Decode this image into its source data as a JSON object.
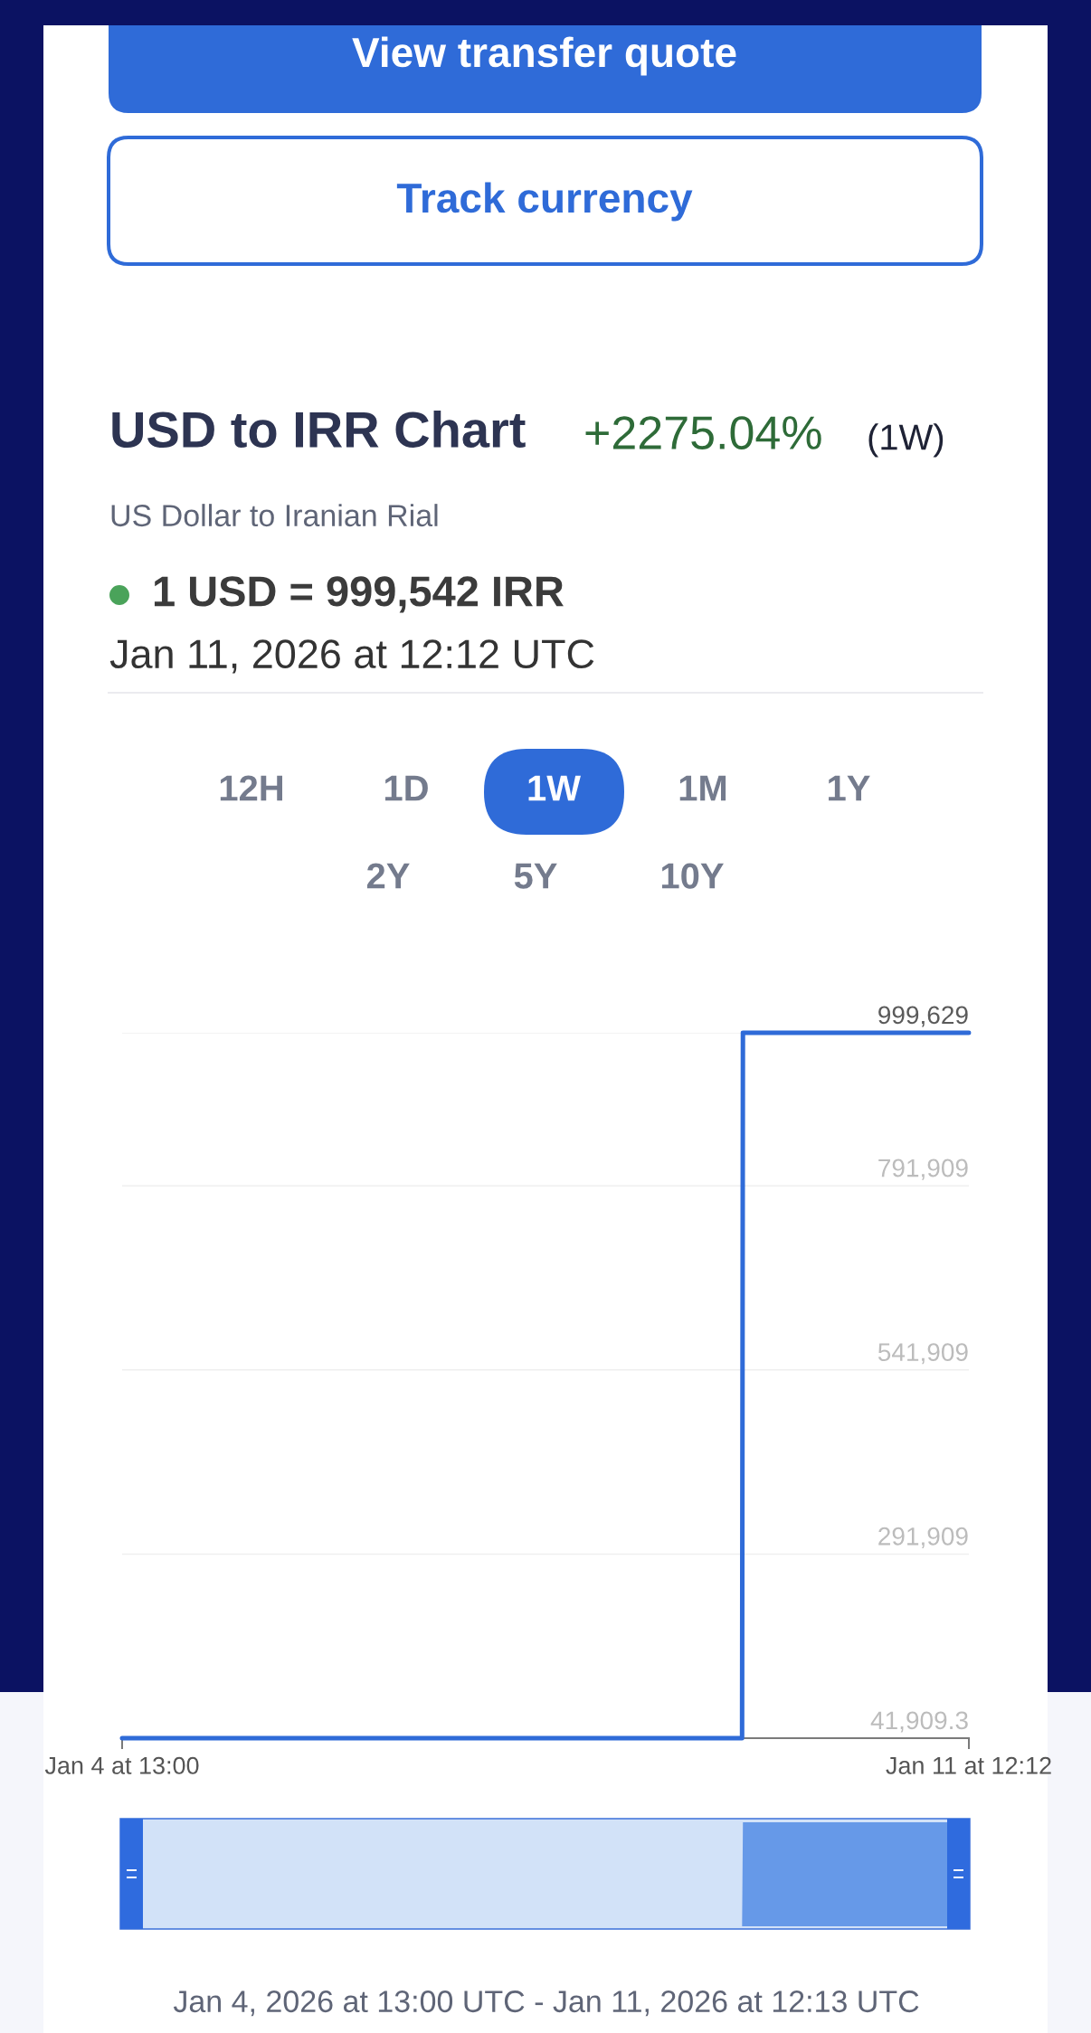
{
  "chart_data": {
    "type": "line",
    "title": "USD to IRR Chart",
    "subtitle": "US Dollar to Iranian Rial",
    "annotations": [
      "View transfer quote",
      "Track currency",
      "+2275.04%",
      "(1W)",
      "1 USD = 999,542 IRR",
      "Jan 11, 2026 at 12:12 UTC",
      "12H",
      "1D",
      "1W",
      "1M",
      "1Y",
      "2Y",
      "5Y",
      "10Y",
      "Jan 4, 2026 at 13:00 UTC - Jan 11, 2026 at 12:13 UTC"
    ],
    "series": [
      {
        "color": "#2f6bd8",
        "x": [
          "2026-01-04T13:00",
          "2026-01-09T15:25",
          "2026-01-09T15:35",
          "2026-01-11T12:12"
        ],
        "values": [
          42000,
          42000,
          999629,
          999542
        ]
      }
    ],
    "xlim": [
      "2026-01-04T13:00",
      "2026-01-11T12:12"
    ],
    "xticks": [
      {
        "value": "2026-01-04T13:00",
        "label": "Jan 4 at 13:00"
      },
      {
        "value": "2026-01-11T12:12",
        "label": "Jan 11 at 12:12"
      }
    ],
    "ylim": [
      41909.3,
      999629
    ],
    "yticks": [
      {
        "value": 41909.3,
        "label": "41,909.3"
      },
      {
        "value": 291909,
        "label": "291,909"
      },
      {
        "value": 541909,
        "label": "541,909"
      },
      {
        "value": 791909,
        "label": "791,909"
      },
      {
        "value": 999629,
        "label": "999,629"
      }
    ],
    "grid": "y"
  }
}
